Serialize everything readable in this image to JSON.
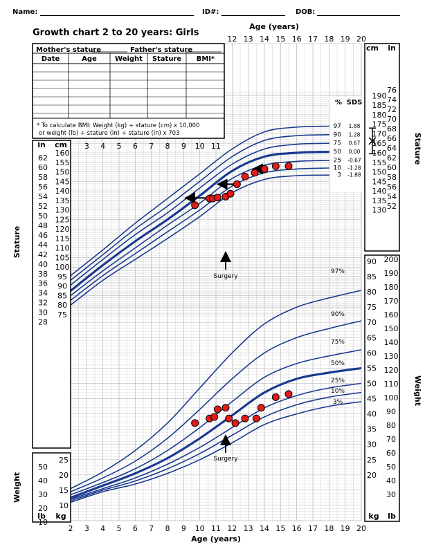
{
  "header": {
    "name_label": "Name:",
    "id_label": "ID#:",
    "dob_label": "DOB:",
    "title": "Growth chart 2 to 20 years: Girls"
  },
  "record_table": {
    "mothers_stature_label": "Mother's stature",
    "fathers_stature_label": "Father's stature",
    "columns": [
      "Date",
      "Age",
      "Weight",
      "Stature",
      "BMI*"
    ],
    "bmi_note_line1": "* To calculate BMI: Weight (kg) ÷ stature (cm) x 10,000",
    "bmi_note_line2": "or weight (lb) ÷ stature (in) ÷ stature (in) x 703"
  },
  "chart_data": {
    "type": "scatter",
    "title": "Growth chart 2 to 20 years: Girls",
    "xlabel": "Age (years)",
    "x_ticks": [
      2,
      3,
      4,
      5,
      6,
      7,
      8,
      9,
      10,
      11,
      12,
      13,
      14,
      15,
      16,
      17,
      18,
      19,
      20
    ],
    "xlim": [
      2,
      20
    ],
    "stature": {
      "ylabel": "Stature",
      "units": [
        "cm",
        "in"
      ],
      "cm_ticks_right": [
        130,
        135,
        140,
        145,
        150,
        155,
        160,
        165,
        170,
        175,
        180,
        185,
        190
      ],
      "in_ticks_right": [
        52,
        54,
        56,
        58,
        60,
        62,
        64,
        66,
        68,
        70,
        72,
        74,
        76
      ],
      "cm_ticks_left": [
        75,
        80,
        85,
        90,
        95,
        100,
        105,
        110,
        115,
        120,
        125,
        130,
        135,
        140,
        145,
        150,
        155,
        160
      ],
      "in_ticks_left": [
        28,
        30,
        32,
        34,
        36,
        38,
        40,
        42,
        44,
        46,
        48,
        50,
        52,
        54,
        56,
        58,
        60,
        62
      ],
      "percentile_header": "%",
      "sds_header": "SDS",
      "percentiles": [
        {
          "pct": "97",
          "sds": "1.88"
        },
        {
          "pct": "90",
          "sds": "1.28"
        },
        {
          "pct": "75",
          "sds": "0.67"
        },
        {
          "pct": "50",
          "sds": "0.00"
        },
        {
          "pct": "25",
          "sds": "-0.67"
        },
        {
          "pct": "10",
          "sds": "-1.28"
        },
        {
          "pct": "3",
          "sds": "-1.88"
        }
      ],
      "measurements": [
        {
          "age": 9.7,
          "cm": 132.5
        },
        {
          "age": 10.6,
          "cm": 136
        },
        {
          "age": 10.8,
          "cm": 136
        },
        {
          "age": 11.1,
          "cm": 136.5
        },
        {
          "age": 11.6,
          "cm": 137
        },
        {
          "age": 11.9,
          "cm": 138.5
        },
        {
          "age": 12.3,
          "cm": 143.5
        },
        {
          "age": 12.8,
          "cm": 147.5
        },
        {
          "age": 13.4,
          "cm": 149.5
        },
        {
          "age": 14.0,
          "cm": 151.5
        },
        {
          "age": 14.7,
          "cm": 153
        },
        {
          "age": 15.5,
          "cm": 153
        }
      ],
      "annotation": "Surgery"
    },
    "weight": {
      "ylabel": "Weight",
      "units": [
        "kg",
        "lb"
      ],
      "kg_ticks_right": [
        20,
        25,
        30,
        35,
        40,
        45,
        50,
        55,
        60,
        65,
        70,
        75,
        80,
        85,
        90
      ],
      "lb_ticks_right": [
        30,
        40,
        50,
        60,
        70,
        80,
        90,
        100,
        110,
        120,
        130,
        140,
        150,
        160,
        170,
        180,
        190,
        200
      ],
      "kg_ticks_left": [
        10,
        15,
        20,
        25
      ],
      "lb_ticks_left": [
        10,
        20,
        30,
        40,
        50
      ],
      "percentile_labels": [
        "97%",
        "90%",
        "75%",
        "50%",
        "25%",
        "10%",
        "3%"
      ],
      "measurements": [
        {
          "age": 9.7,
          "kg": 37
        },
        {
          "age": 10.6,
          "kg": 38.5
        },
        {
          "age": 10.9,
          "kg": 39
        },
        {
          "age": 11.1,
          "kg": 41.5
        },
        {
          "age": 11.6,
          "kg": 42
        },
        {
          "age": 11.8,
          "kg": 38.5
        },
        {
          "age": 12.2,
          "kg": 37
        },
        {
          "age": 12.8,
          "kg": 38.5
        },
        {
          "age": 13.5,
          "kg": 38.5
        },
        {
          "age": 13.8,
          "kg": 42
        },
        {
          "age": 14.7,
          "kg": 45.5
        },
        {
          "age": 15.5,
          "kg": 46.5
        }
      ],
      "annotation": "Surgery"
    },
    "colors": {
      "curves": "#1a3a8f",
      "points": "#e31b1b",
      "grid": "#b9b9b9",
      "axis": "#000000"
    }
  }
}
